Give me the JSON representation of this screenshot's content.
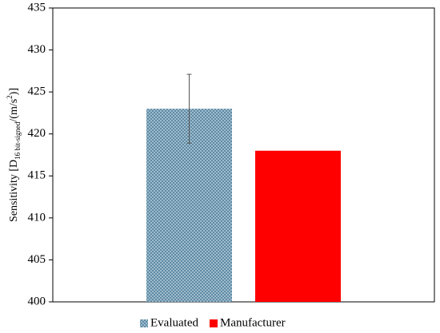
{
  "chart_data": {
    "type": "bar",
    "y_label": [
      "Sensitivity [D",
      "16 bit-signed",
      "/(m/s",
      "2",
      ")]"
    ],
    "categories": [
      null
    ],
    "series": [
      {
        "name": "Evaluated",
        "color": "#7fa3bb",
        "values": [
          423
        ],
        "errors": [
          4.1
        ]
      },
      {
        "name": "Manufacturer",
        "color": "#ff0000",
        "values": [
          418
        ]
      }
    ],
    "ylim": [
      400,
      435
    ],
    "yticks": [
      400,
      405,
      410,
      415,
      420,
      425,
      430,
      435
    ],
    "grid": false,
    "legend": "bottom"
  }
}
